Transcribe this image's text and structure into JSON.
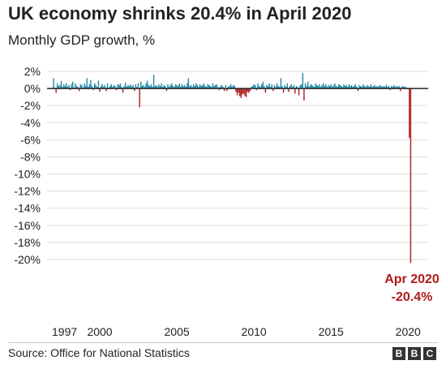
{
  "header": {
    "title": "UK economy shrinks 20.4% in April 2020",
    "subtitle": "Monthly GDP growth, %"
  },
  "footer": {
    "source": "Source: Office for National Statistics",
    "brand_letters": [
      "B",
      "B",
      "C"
    ]
  },
  "colors": {
    "positive": "#1a8aa8",
    "negative": "#b01a1a",
    "axis": "#222222",
    "grid": "#dddddd",
    "annotation": "#b01a1a"
  },
  "chart_data": {
    "type": "bar",
    "title": "UK economy shrinks 20.4% in April 2020",
    "subtitle": "Monthly GDP growth, %",
    "xlabel": "",
    "ylabel": "",
    "ylim": [
      -20,
      2
    ],
    "yticks": [
      2,
      0,
      -2,
      -4,
      -6,
      -8,
      -10,
      -12,
      -14,
      -16,
      -18,
      -20
    ],
    "ytick_labels": [
      "2%",
      "0%",
      "-2%",
      "-4%",
      "-6%",
      "-8%",
      "-10%",
      "-12%",
      "-14%",
      "-16%",
      "-18%",
      "-20%"
    ],
    "xticks": [
      1997,
      2000,
      2005,
      2010,
      2015,
      2020
    ],
    "x_range": [
      "1997-01",
      "2020-04"
    ],
    "grid": true,
    "annotations": [
      {
        "x": "2020-04",
        "y": -20.4,
        "lines": [
          "Apr 2020",
          "-20.4%"
        ]
      }
    ],
    "series": [
      {
        "start": "1997-01",
        "frequency": "monthly",
        "values": [
          1.2,
          0.1,
          -0.5,
          0.6,
          0.3,
          0.4,
          0.9,
          0.2,
          0.5,
          0.3,
          0.6,
          0.2,
          0.4,
          -0.2,
          0.5,
          0.8,
          0.1,
          0.6,
          0.3,
          0.2,
          -0.3,
          0.5,
          0.4,
          0.1,
          0.6,
          0.3,
          1.2,
          0.2,
          0.5,
          1.0,
          0.3,
          -0.2,
          0.6,
          0.4,
          0.2,
          0.9,
          -0.4,
          0.3,
          0.5,
          0.2,
          0.4,
          -0.3,
          0.6,
          0.1,
          0.3,
          0.5,
          0.2,
          0.4,
          0.3,
          -0.2,
          0.5,
          0.4,
          0.6,
          0.2,
          -0.5,
          0.3,
          0.7,
          0.2,
          0.4,
          0.3,
          0.5,
          0.2,
          0.4,
          -0.3,
          0.5,
          0.2,
          0.6,
          -2.2,
          0.8,
          0.3,
          0.4,
          0.2,
          0.6,
          0.9,
          0.4,
          0.3,
          0.5,
          0.2,
          1.6,
          0.3,
          0.4,
          0.2,
          0.5,
          0.3,
          0.6,
          0.2,
          0.4,
          0.3,
          -0.3,
          0.5,
          0.2,
          0.4,
          0.6,
          0.3,
          0.2,
          0.5,
          0.4,
          0.3,
          0.6,
          0.2,
          0.5,
          0.3,
          0.4,
          0.2,
          0.6,
          1.2,
          0.3,
          0.4,
          0.2,
          0.5,
          0.3,
          0.6,
          0.4,
          0.2,
          0.5,
          0.3,
          0.4,
          0.6,
          0.3,
          0.2,
          0.5,
          0.4,
          0.3,
          0.2,
          0.6,
          0.3,
          0.4,
          0.5,
          0.2,
          -0.2,
          0.3,
          0.4,
          0.2,
          -0.3,
          0.4,
          -0.3,
          0.2,
          0.3,
          0.5,
          0.2,
          0.4,
          0.3,
          -0.4,
          -0.8,
          -0.5,
          -0.9,
          -1.1,
          -0.7,
          -0.6,
          -0.9,
          -1.0,
          -0.4,
          -0.5,
          -0.3,
          0.2,
          0.3,
          0.5,
          0.4,
          -0.2,
          0.6,
          0.3,
          0.2,
          0.5,
          0.8,
          0.3,
          -0.5,
          0.4,
          0.3,
          0.6,
          0.2,
          0.5,
          -0.3,
          0.4,
          0.2,
          0.6,
          0.3,
          0.2,
          1.2,
          0.3,
          -0.5,
          0.4,
          0.2,
          0.6,
          -0.4,
          0.3,
          0.5,
          0.2,
          0.4,
          -0.6,
          0.3,
          0.2,
          -0.8,
          0.4,
          0.5,
          1.8,
          -1.4,
          0.6,
          0.3,
          0.8,
          0.2,
          0.4,
          0.5,
          0.3,
          0.2,
          0.6,
          0.4,
          0.3,
          0.5,
          0.2,
          0.4,
          0.6,
          0.3,
          0.5,
          0.2,
          0.4,
          0.3,
          0.5,
          0.2,
          0.4,
          0.6,
          0.3,
          0.2,
          0.5,
          0.4,
          0.3,
          0.2,
          0.5,
          0.3,
          0.4,
          0.2,
          0.5,
          0.3,
          0.4,
          0.2,
          0.3,
          0.5,
          0.2,
          -0.3,
          0.4,
          0.3,
          0.2,
          0.5,
          0.3,
          0.2,
          0.4,
          0.3,
          0.2,
          0.5,
          0.2,
          0.3,
          0.4,
          0.2,
          0.3,
          0.2,
          0.4,
          0.3,
          0.2,
          0.3,
          0.2,
          0.4,
          0.2,
          0.3,
          -0.2,
          0.3,
          0.2,
          0.4,
          0.2,
          0.3,
          0.2,
          0.3,
          -0.3,
          0.2,
          0.3,
          0.2,
          0.2,
          -0.1,
          0.1,
          -5.8,
          -20.4
        ]
      }
    ]
  }
}
